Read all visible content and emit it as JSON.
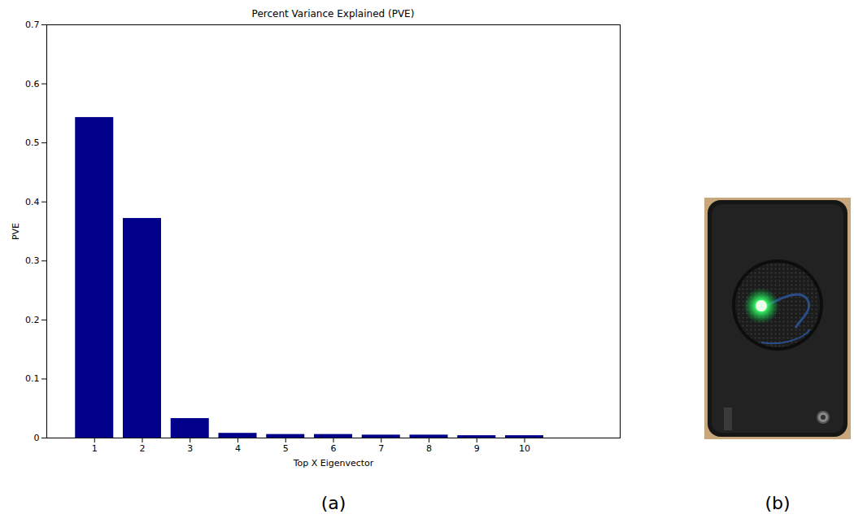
{
  "chart_data": {
    "type": "bar",
    "title": "Percent Variance Explained (PVE)",
    "x_label": "Top X Eigenvector",
    "y_label": "PVE",
    "x": [
      1,
      2,
      3,
      4,
      5,
      6,
      7,
      8,
      9,
      10
    ],
    "values": [
      0.543,
      0.372,
      0.033,
      0.008,
      0.006,
      0.006,
      0.005,
      0.005,
      0.004,
      0.004
    ],
    "color": "#00008b",
    "xlim": [
      0,
      12
    ],
    "xticks": [
      1,
      2,
      3,
      4,
      5,
      6,
      7,
      8,
      9,
      10
    ],
    "ylim": [
      0,
      0.7
    ],
    "yticks": [
      0,
      0.1,
      0.2,
      0.3,
      0.4,
      0.5,
      0.6,
      0.7
    ],
    "grid": false
  },
  "panel_labels": [
    "(a)",
    "(b)"
  ]
}
